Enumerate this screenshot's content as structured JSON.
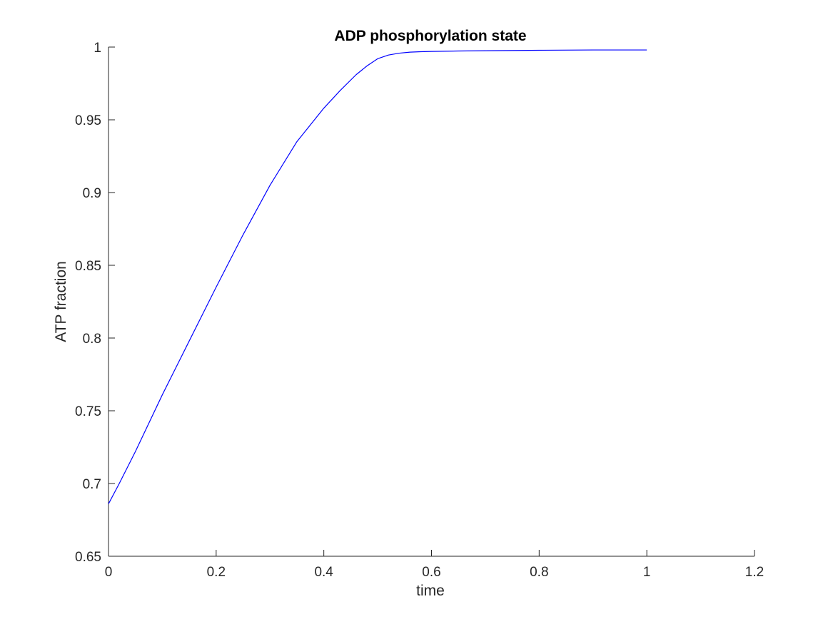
{
  "chart_data": {
    "type": "line",
    "title": "ADP phosphorylation state",
    "xlabel": "time",
    "ylabel": "ATP fraction",
    "xlim": [
      0,
      1.2
    ],
    "ylim": [
      0.65,
      1.0
    ],
    "xticks": [
      0,
      0.2,
      0.4,
      0.6,
      0.8,
      1,
      1.2
    ],
    "xtick_labels": [
      "0",
      "0.2",
      "0.4",
      "0.6",
      "0.8",
      "1",
      "1.2"
    ],
    "yticks": [
      0.65,
      0.7,
      0.75,
      0.8,
      0.85,
      0.9,
      0.95,
      1.0
    ],
    "ytick_labels": [
      "0.65",
      "0.7",
      "0.75",
      "0.8",
      "0.85",
      "0.9",
      "0.95",
      "1"
    ],
    "grid": false,
    "series": [
      {
        "color": "#0000ff",
        "x": [
          0,
          0.02,
          0.05,
          0.1,
          0.15,
          0.2,
          0.25,
          0.3,
          0.35,
          0.4,
          0.43,
          0.46,
          0.48,
          0.5,
          0.52,
          0.54,
          0.56,
          0.58,
          0.6,
          0.65,
          0.7,
          0.8,
          0.9,
          1.0
        ],
        "y": [
          0.686,
          0.7,
          0.722,
          0.761,
          0.798,
          0.835,
          0.871,
          0.905,
          0.935,
          0.958,
          0.97,
          0.981,
          0.987,
          0.992,
          0.9945,
          0.9958,
          0.9965,
          0.9968,
          0.997,
          0.9973,
          0.9975,
          0.9978,
          0.998,
          0.998
        ]
      }
    ]
  }
}
